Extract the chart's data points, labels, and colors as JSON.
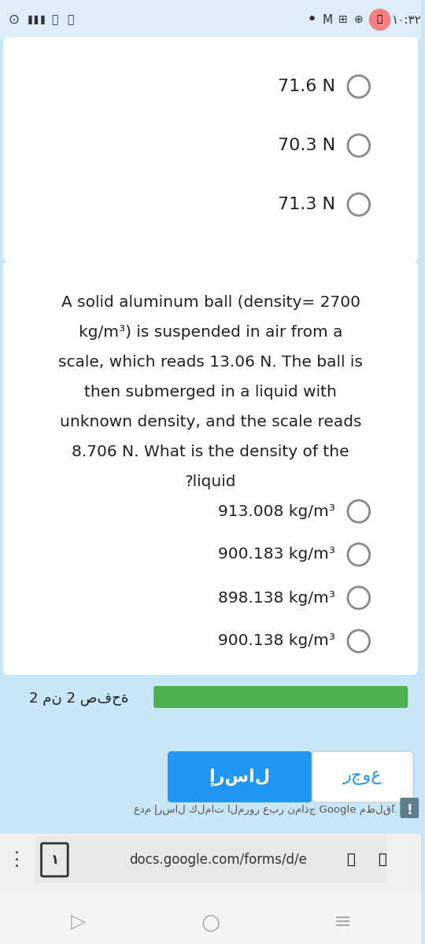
{
  "bg_color": "#c8e6f5",
  "status_bar_bg": "#e8f4fb",
  "status_time": "١٠:٣٢",
  "card1_bg": "#ffffff",
  "card1_options": [
    "71.6 N",
    "70.3 N",
    "71.3 N"
  ],
  "card2_bg": "#ffffff",
  "question_text": "A solid aluminum ball (density= 2700\nkg/m³) is suspended in air from a\nscale, which reads 13.06 N. The ball is\nthen submerged in a liquid with\nunknown density, and the scale reads\n8.706 N. What is the density of the\n?liquid",
  "card2_options": [
    "913.008 kg/m³",
    "900.183 kg/m³",
    "898.138 kg/m³",
    "900.138 kg/m³"
  ],
  "footer_bg": "#c8e6f5",
  "page_text": "2 من 2 صفحة",
  "progress_color": "#4caf50",
  "send_btn_color": "#2196f3",
  "send_btn_text": "إرسال",
  "back_btn_color": "#ffffff",
  "back_btn_text": "رجوع",
  "warning_text": "عدم إرسال كلمات المرور عبر نماذج Google مطلقًا.",
  "url_text": "docs.google.com/forms/d/e",
  "url_bar_color": "#e8e8e8",
  "text_color_dark": "#212121",
  "text_color_mid": "#424242",
  "text_color_light": "#607d8b"
}
